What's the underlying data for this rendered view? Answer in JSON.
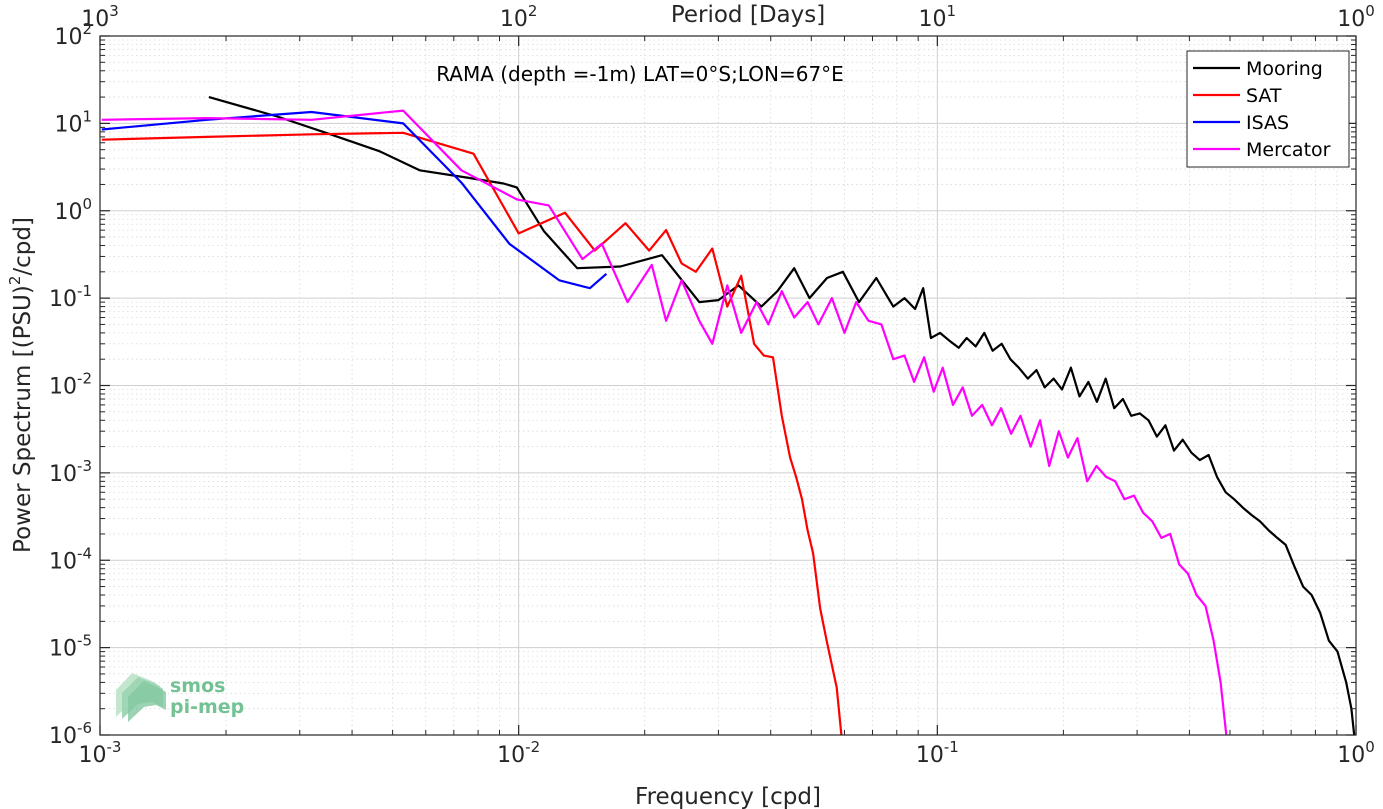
{
  "chart_data": {
    "type": "line",
    "title": "",
    "annotation": "RAMA (depth =-1m) LAT=0°S;LON=67°E",
    "xlabel": "Frequency [cpd]",
    "ylabel": "Power Spectrum [(PSU)^2/cpd]",
    "ylabel_parts": {
      "pre": "Power Spectrum [(PSU)",
      "sup": "2",
      "post": "/cpd]"
    },
    "top_axis_label": "Period [Days]",
    "x_scale": "log",
    "y_scale": "log",
    "xlim": [
      0.001,
      1
    ],
    "ylim": [
      1e-06,
      100
    ],
    "grid": true,
    "legend_position": "top-right",
    "x_ticks": [
      {
        "value": 0.001,
        "base": "10",
        "exp": "-3"
      },
      {
        "value": 0.01,
        "base": "10",
        "exp": "-2"
      },
      {
        "value": 0.1,
        "base": "10",
        "exp": "-1"
      },
      {
        "value": 1,
        "base": "10",
        "exp": "0"
      }
    ],
    "top_ticks": [
      {
        "value": 0.001,
        "base": "10",
        "exp": "3"
      },
      {
        "value": 0.01,
        "base": "10",
        "exp": "2"
      },
      {
        "value": 0.1,
        "base": "10",
        "exp": "1"
      },
      {
        "value": 1,
        "base": "10",
        "exp": "0"
      }
    ],
    "y_ticks": [
      {
        "value": 100,
        "base": "10",
        "exp": "2"
      },
      {
        "value": 10,
        "base": "10",
        "exp": "1"
      },
      {
        "value": 1,
        "base": "10",
        "exp": "0"
      },
      {
        "value": 0.1,
        "base": "10",
        "exp": "-1"
      },
      {
        "value": 0.01,
        "base": "10",
        "exp": "-2"
      },
      {
        "value": 0.001,
        "base": "10",
        "exp": "-3"
      },
      {
        "value": 0.0001,
        "base": "10",
        "exp": "-4"
      },
      {
        "value": 1e-05,
        "base": "10",
        "exp": "-5"
      },
      {
        "value": 1e-06,
        "base": "10",
        "exp": "-6"
      }
    ],
    "series": [
      {
        "name": "Mooring",
        "color": "#000000",
        "x": [
          0.00182,
          0.00265,
          0.00355,
          0.00465,
          0.0058,
          0.0075,
          0.0092,
          0.0099,
          0.0115,
          0.0138,
          0.0175,
          0.022,
          0.027,
          0.03,
          0.0335,
          0.038,
          0.0415,
          0.0455,
          0.0495,
          0.0545,
          0.0595,
          0.065,
          0.0715,
          0.0785,
          0.0835,
          0.0885,
          0.0925,
          0.0965,
          0.1015,
          0.1065,
          0.1125,
          0.1175,
          0.1235,
          0.1295,
          0.1355,
          0.1425,
          0.1495,
          0.1565,
          0.1645,
          0.1725,
          0.1805,
          0.1895,
          0.1985,
          0.2085,
          0.2185,
          0.2295,
          0.2405,
          0.2525,
          0.2645,
          0.2775,
          0.2905,
          0.3045,
          0.3195,
          0.3345,
          0.3505,
          0.3675,
          0.3855,
          0.4045,
          0.4235,
          0.4445,
          0.4655,
          0.4885,
          0.5115,
          0.5365,
          0.5625,
          0.5895,
          0.6185,
          0.6485,
          0.6795,
          0.7125,
          0.7475,
          0.7835,
          0.8215,
          0.8615,
          0.9035,
          0.9475,
          0.975,
          0.99
        ],
        "y": [
          20,
          12,
          7.5,
          4.8,
          2.9,
          2.4,
          2.05,
          1.85,
          0.58,
          0.22,
          0.23,
          0.31,
          0.09,
          0.095,
          0.14,
          0.08,
          0.12,
          0.22,
          0.1,
          0.17,
          0.2,
          0.09,
          0.17,
          0.08,
          0.1,
          0.075,
          0.13,
          0.035,
          0.04,
          0.033,
          0.027,
          0.035,
          0.028,
          0.04,
          0.025,
          0.03,
          0.02,
          0.016,
          0.012,
          0.015,
          0.0095,
          0.012,
          0.009,
          0.016,
          0.0075,
          0.011,
          0.0065,
          0.012,
          0.0055,
          0.007,
          0.0045,
          0.0048,
          0.004,
          0.0026,
          0.0035,
          0.0018,
          0.0024,
          0.0017,
          0.0014,
          0.0016,
          0.0009,
          0.0006,
          0.0005,
          0.0004,
          0.00033,
          0.00028,
          0.00022,
          0.00018,
          0.00015,
          8.5e-05,
          5e-05,
          4e-05,
          2.5e-05,
          1.2e-05,
          9e-06,
          4e-06,
          2e-06,
          1e-06
        ]
      },
      {
        "name": "SAT",
        "color": "#ff0000",
        "x": [
          0.00101,
          0.0018,
          0.0032,
          0.0053,
          0.0078,
          0.01,
          0.0129,
          0.0152,
          0.018,
          0.0205,
          0.0225,
          0.0245,
          0.0265,
          0.029,
          0.0315,
          0.034,
          0.0365,
          0.0385,
          0.0405,
          0.0425,
          0.0445,
          0.046,
          0.0475,
          0.049,
          0.0505,
          0.0525,
          0.0545,
          0.0575,
          0.059
        ],
        "y": [
          6.5,
          7,
          7.5,
          7.8,
          4.5,
          0.55,
          0.95,
          0.35,
          0.72,
          0.35,
          0.6,
          0.25,
          0.2,
          0.37,
          0.08,
          0.18,
          0.03,
          0.022,
          0.021,
          0.0045,
          0.0015,
          0.0009,
          0.0005,
          0.00022,
          0.00012,
          2.8e-05,
          1.15e-05,
          3.5e-06,
          1e-06
        ]
      },
      {
        "name": "ISAS",
        "color": "#0000ff",
        "x": [
          0.00101,
          0.0018,
          0.0032,
          0.0053,
          0.0073,
          0.0095,
          0.0125,
          0.0148,
          0.0162
        ],
        "y": [
          8.5,
          11,
          13.5,
          10,
          2.1,
          0.42,
          0.16,
          0.13,
          0.19
        ]
      },
      {
        "name": "Mercator",
        "color": "#ff00ff",
        "x": [
          0.00101,
          0.0018,
          0.0032,
          0.0053,
          0.0073,
          0.0099,
          0.0118,
          0.0142,
          0.0158,
          0.0182,
          0.0208,
          0.0225,
          0.0245,
          0.027,
          0.029,
          0.0315,
          0.034,
          0.037,
          0.0395,
          0.0425,
          0.0455,
          0.049,
          0.052,
          0.056,
          0.06,
          0.064,
          0.0685,
          0.0735,
          0.0785,
          0.0835,
          0.088,
          0.093,
          0.098,
          0.103,
          0.109,
          0.115,
          0.121,
          0.128,
          0.135,
          0.142,
          0.15,
          0.158,
          0.167,
          0.176,
          0.185,
          0.195,
          0.205,
          0.216,
          0.228,
          0.24,
          0.253,
          0.266,
          0.28,
          0.295,
          0.31,
          0.326,
          0.343,
          0.36,
          0.378,
          0.397,
          0.416,
          0.437,
          0.457,
          0.475,
          0.49
        ],
        "y": [
          11,
          11.5,
          11,
          14,
          2.9,
          1.35,
          1.15,
          0.28,
          0.42,
          0.09,
          0.24,
          0.055,
          0.16,
          0.055,
          0.03,
          0.14,
          0.04,
          0.09,
          0.05,
          0.12,
          0.06,
          0.09,
          0.05,
          0.1,
          0.04,
          0.09,
          0.055,
          0.05,
          0.02,
          0.022,
          0.011,
          0.021,
          0.0085,
          0.016,
          0.006,
          0.0095,
          0.0045,
          0.006,
          0.0035,
          0.0055,
          0.0028,
          0.0045,
          0.002,
          0.004,
          0.0012,
          0.003,
          0.0015,
          0.0025,
          0.0008,
          0.0012,
          0.0009,
          0.0008,
          0.0005,
          0.00055,
          0.00035,
          0.00028,
          0.00018,
          0.0002,
          9e-05,
          7e-05,
          4e-05,
          3e-05,
          1.2e-05,
          4e-06,
          1e-06
        ]
      }
    ]
  },
  "logo": {
    "line1": "smos",
    "line2": "pi-mep",
    "color": "#73c294"
  }
}
